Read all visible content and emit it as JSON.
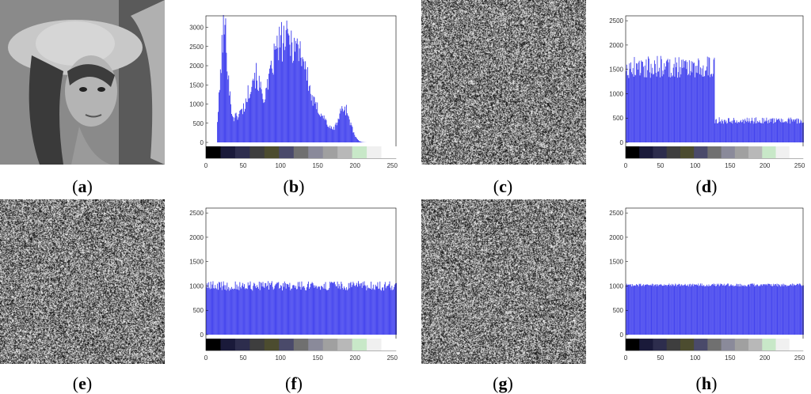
{
  "captions": {
    "a": "a",
    "b": "b",
    "c": "c",
    "d": "d",
    "e": "e",
    "f": "f",
    "g": "g",
    "h": "h"
  },
  "images": [
    {
      "id": "a",
      "kind": "portrait",
      "description_visible": false
    },
    {
      "id": "c",
      "kind": "noise"
    },
    {
      "id": "e",
      "kind": "noise"
    },
    {
      "id": "g",
      "kind": "noise"
    }
  ],
  "colors": {
    "bars": "#4444ee",
    "bar_edge": "#2222cc",
    "axis": "#000000"
  },
  "colorbar": [
    "#000000",
    "#1a1a3a",
    "#2d2d4d",
    "#3e3e3e",
    "#4c4c2f",
    "#4a4a6a",
    "#707070",
    "#8a8a9a",
    "#a0a0a0",
    "#b8b8b8",
    "#c8e8c8",
    "#f0f0f0",
    "#ffffff"
  ],
  "chart_data": [
    {
      "id": "b",
      "type": "bar",
      "x_ticks": [
        0,
        50,
        100,
        150,
        200,
        250
      ],
      "y_ticks": [
        0,
        500,
        1000,
        1500,
        2000,
        2500,
        3000
      ],
      "xlim": [
        0,
        255
      ],
      "ylim": [
        0,
        3300
      ],
      "profile": "lena"
    },
    {
      "id": "d",
      "type": "bar",
      "x_ticks": [
        0,
        50,
        100,
        150,
        200,
        250
      ],
      "y_ticks": [
        0,
        500,
        1000,
        1500,
        2000,
        2500
      ],
      "xlim": [
        0,
        255
      ],
      "ylim": [
        0,
        2600
      ],
      "profile": "step",
      "segments": [
        {
          "from": 0,
          "to": 127,
          "approx_value": 1550
        },
        {
          "from": 128,
          "to": 255,
          "approx_value": 450
        }
      ]
    },
    {
      "id": "f",
      "type": "bar",
      "x_ticks": [
        0,
        50,
        100,
        150,
        200,
        250
      ],
      "y_ticks": [
        0,
        500,
        1000,
        1500,
        2000,
        2500
      ],
      "xlim": [
        0,
        255
      ],
      "ylim": [
        0,
        2600
      ],
      "profile": "noisy_flat",
      "approx_value": 1000
    },
    {
      "id": "h",
      "type": "bar",
      "x_ticks": [
        0,
        50,
        100,
        150,
        200,
        250
      ],
      "y_ticks": [
        0,
        500,
        1000,
        1500,
        2000,
        2500
      ],
      "xlim": [
        0,
        255
      ],
      "ylim": [
        0,
        2600
      ],
      "profile": "flat",
      "approx_value": 1020
    }
  ]
}
